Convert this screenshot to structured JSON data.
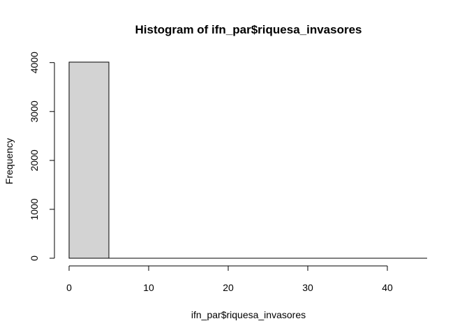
{
  "chart_data": {
    "type": "bar",
    "title": "Histogram of ifn_par$riquesa_invasores",
    "xlabel": "ifn_par$riquesa_invasores",
    "ylabel": "Frequency",
    "bins": [
      {
        "from": 0,
        "to": 5,
        "value": 4010
      },
      {
        "from": 5,
        "to": 10,
        "value": 0
      },
      {
        "from": 10,
        "to": 15,
        "value": 0
      },
      {
        "from": 15,
        "to": 20,
        "value": 0
      },
      {
        "from": 20,
        "to": 25,
        "value": 0
      },
      {
        "from": 25,
        "to": 30,
        "value": 0
      },
      {
        "from": 30,
        "to": 35,
        "value": 0
      },
      {
        "from": 35,
        "to": 40,
        "value": 0
      },
      {
        "from": 40,
        "to": 45,
        "value": 0
      }
    ],
    "xlim": [
      0,
      45
    ],
    "ylim": [
      0,
      4010
    ],
    "xticks": [
      0,
      10,
      20,
      30,
      40
    ],
    "xtick_labels": [
      "0",
      "10",
      "20",
      "30",
      "40"
    ],
    "yticks": [
      0,
      1000,
      2000,
      3000,
      4000
    ],
    "ytick_labels": [
      "0",
      "1000",
      "2000",
      "3000",
      "4000"
    ],
    "bar_color": "#d3d3d3",
    "grid": false,
    "legend": "none"
  }
}
